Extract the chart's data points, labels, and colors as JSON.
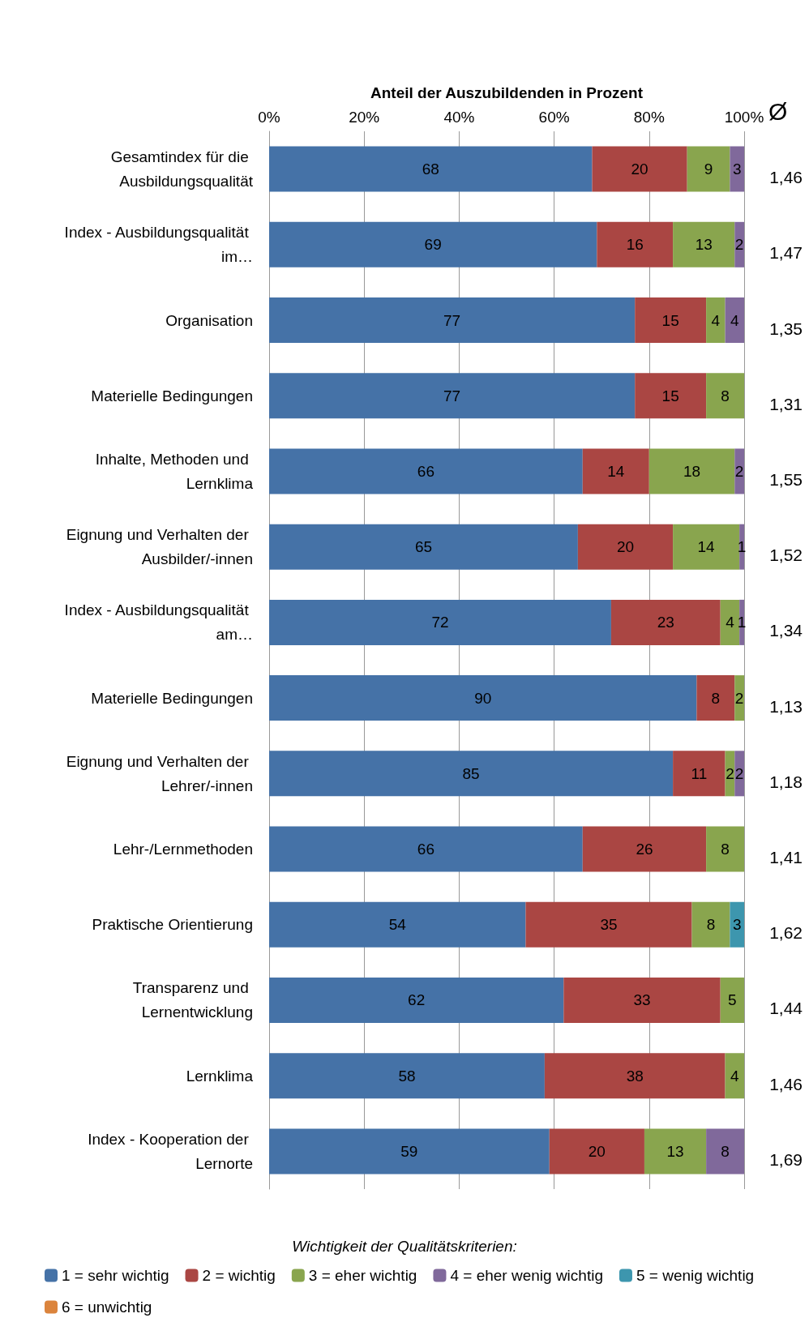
{
  "chart_data": {
    "type": "bar",
    "orientation": "horizontal",
    "stacked": true,
    "xlabel": "Anteil der Auszubildenden in Prozent",
    "legend_title": "Wichtigkeit der Qualitätskriterien:",
    "categories": [
      "Gesamtindex für die Ausbildungsqualität",
      "Index - Ausbildungsqualität im…",
      "Organisation",
      "Materielle Bedingungen",
      "Inhalte, Methoden und Lernklima",
      "Eignung und Verhalten der Ausbilder/-innen",
      "Index - Ausbildungsqualität am…",
      "Materielle Bedingungen",
      "Eignung und Verhalten der Lehrer/-innen",
      "Lehr-/Lernmethoden",
      "Praktische Orientierung",
      "Transparenz und Lernentwicklung",
      "Lernklima",
      "Index - Kooperation der Lernorte"
    ],
    "series": [
      {
        "name": "1 = sehr wichtig",
        "color": "#4572a7",
        "values": [
          68,
          69,
          77,
          77,
          66,
          65,
          72,
          90,
          85,
          66,
          54,
          62,
          58,
          59
        ]
      },
      {
        "name": "2 = wichtig",
        "color": "#aa4643",
        "values": [
          20,
          16,
          15,
          15,
          14,
          20,
          23,
          8,
          11,
          26,
          35,
          33,
          38,
          20
        ]
      },
      {
        "name": "3 = eher wichtig",
        "color": "#89a54e",
        "values": [
          9,
          13,
          4,
          8,
          18,
          14,
          4,
          2,
          2,
          8,
          8,
          5,
          4,
          13
        ]
      },
      {
        "name": "4 = eher wenig wichtig",
        "color": "#80699b",
        "values": [
          3,
          2,
          4,
          null,
          2,
          1,
          1,
          null,
          2,
          null,
          null,
          null,
          null,
          8
        ]
      },
      {
        "name": "5 = wenig wichtig",
        "color": "#3d96ae",
        "values": [
          null,
          null,
          null,
          null,
          null,
          null,
          null,
          null,
          null,
          null,
          3,
          null,
          null,
          null
        ]
      },
      {
        "name": "6 = unwichtig",
        "color": "#db843d",
        "values": [
          null,
          null,
          null,
          null,
          null,
          null,
          null,
          null,
          null,
          null,
          null,
          null,
          null,
          null
        ]
      }
    ],
    "xlim": [
      0,
      100
    ],
    "xticks": [
      {
        "value": 0,
        "label": "0%"
      },
      {
        "value": 20,
        "label": "20%"
      },
      {
        "value": 40,
        "label": "40%"
      },
      {
        "value": 60,
        "label": "60%"
      },
      {
        "value": 80,
        "label": "80%"
      },
      {
        "value": 100,
        "label": "100%"
      }
    ],
    "grid": "x",
    "legend": "bottom",
    "data_labels": true,
    "annotations": [
      "Ø",
      "1,46",
      "1,47",
      "1,35",
      "1,31",
      "1,55",
      "1,52",
      "1,34",
      "1,13",
      "1,18",
      "1,41",
      "1,62",
      "1,44",
      "1,46",
      "1,69"
    ]
  }
}
